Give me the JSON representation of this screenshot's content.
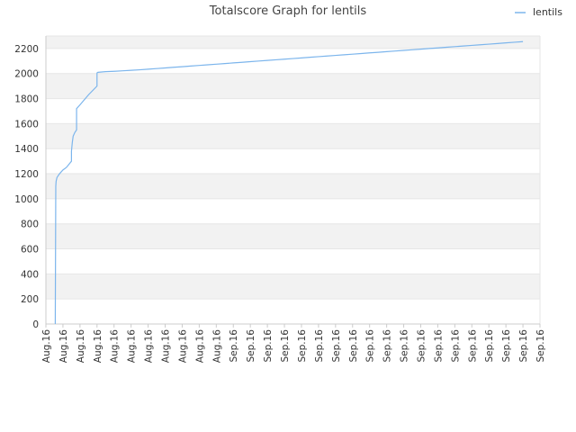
{
  "chart_data": {
    "type": "line",
    "title": "Totalscore Graph for lentils",
    "xlabel": "",
    "ylabel": "",
    "ylim": [
      0,
      2300
    ],
    "y_ticks": [
      0,
      200,
      400,
      600,
      800,
      1000,
      1200,
      1400,
      1600,
      1800,
      2000,
      2200
    ],
    "x_tick_labels": [
      "Aug.16",
      "Aug.16",
      "Aug.16",
      "Aug.16",
      "Aug.16",
      "Aug.16",
      "Aug.16",
      "Aug.16",
      "Aug.16",
      "Aug.16",
      "Aug.16",
      "Sep.16",
      "Sep.16",
      "Sep.16",
      "Sep.16",
      "Sep.16",
      "Sep.16",
      "Sep.16",
      "Sep.16",
      "Sep.16",
      "Sep.16",
      "Sep.16",
      "Sep.16",
      "Sep.16",
      "Sep.16",
      "Sep.16",
      "Sep.16",
      "Sep.16",
      "Sep.16",
      "Sep.16"
    ],
    "grid": true,
    "legend_position": "top-right",
    "series": [
      {
        "name": "lentils",
        "color": "#7cb5ec",
        "x": [
          0.55,
          0.58,
          0.6,
          0.65,
          0.8,
          1.0,
          1.2,
          1.5,
          1.5,
          1.55,
          1.6,
          1.7,
          1.8,
          1.8,
          2.0,
          2.5,
          3.0,
          3.0,
          3.05,
          3.5,
          4.0,
          4.5,
          5.0,
          5.5,
          6.0,
          6.5,
          7.0,
          7.5,
          8.0,
          8.5,
          9.0,
          9.5,
          10.0,
          10.5,
          11.0,
          11.5,
          12.0,
          12.5,
          13.0,
          13.5,
          14.0,
          14.5,
          15.0,
          15.5,
          16.0,
          16.5,
          17.0,
          17.5,
          18.0,
          18.5,
          19.0,
          19.5,
          20.0,
          20.5,
          21.0,
          21.5,
          22.0,
          22.5,
          23.0,
          23.5,
          24.0,
          24.5,
          25.0,
          25.5,
          26.0,
          26.5,
          27.0,
          27.5,
          28.0
        ],
        "y": [
          0,
          1100,
          1140,
          1170,
          1200,
          1230,
          1250,
          1300,
          1380,
          1450,
          1500,
          1530,
          1550,
          1720,
          1750,
          1830,
          1900,
          2005,
          2010,
          2015,
          2018,
          2022,
          2026,
          2030,
          2035,
          2040,
          2045,
          2050,
          2055,
          2060,
          2065,
          2070,
          2075,
          2080,
          2085,
          2090,
          2095,
          2100,
          2105,
          2110,
          2115,
          2120,
          2125,
          2130,
          2135,
          2140,
          2145,
          2150,
          2155,
          2160,
          2165,
          2170,
          2175,
          2180,
          2185,
          2190,
          2195,
          2200,
          2205,
          2210,
          2215,
          2220,
          2225,
          2230,
          2235,
          2240,
          2245,
          2250,
          2255
        ]
      }
    ]
  },
  "colors": {
    "band_alt": "#f2f2f2",
    "band_base": "#ffffff",
    "grid": "#e6e6e6",
    "axis": "#cccccc",
    "line": "#7cb5ec"
  }
}
